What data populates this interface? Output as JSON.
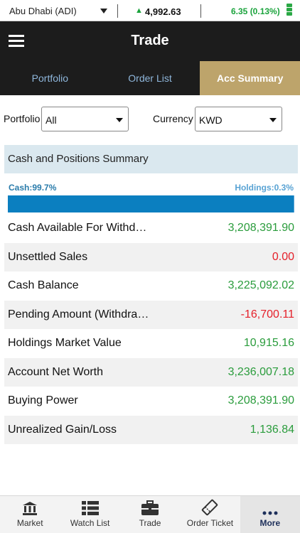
{
  "ticker": {
    "market": "Abu Dhabi (ADI)",
    "index_value": "4,992.63",
    "change": "6.35 (0.13%)"
  },
  "header": {
    "title": "Trade"
  },
  "tabs": [
    {
      "label": "Portfolio"
    },
    {
      "label": "Order List"
    },
    {
      "label": "Acc Summary"
    }
  ],
  "filters": {
    "portfolio_label": "Portfolio",
    "portfolio_value": "All",
    "currency_label": "Currency",
    "currency_value": "KWD"
  },
  "summary": {
    "title": "Cash and Positions Summary",
    "cash_ratio": "Cash:99.7%",
    "holdings_ratio": "Holdings:0.3%",
    "cash_fraction": 0.997,
    "rows": [
      {
        "label": "Cash Available For Withd…",
        "value": "3,208,391.90",
        "tone": "green"
      },
      {
        "label": "Unsettled Sales",
        "value": "0.00",
        "tone": "red"
      },
      {
        "label": "Cash Balance",
        "value": "3,225,092.02",
        "tone": "green"
      },
      {
        "label": "Pending Amount (Withdra…",
        "value": "-16,700.11",
        "tone": "red"
      },
      {
        "label": "Holdings Market Value",
        "value": "10,915.16",
        "tone": "green"
      },
      {
        "label": "Account Net Worth",
        "value": "3,236,007.18",
        "tone": "green"
      },
      {
        "label": "Buying Power",
        "value": "3,208,391.90",
        "tone": "green"
      },
      {
        "label": "Unrealized Gain/Loss",
        "value": "1,136.84",
        "tone": "green"
      }
    ]
  },
  "bottom_nav": [
    {
      "label": "Market",
      "icon": "bank-icon"
    },
    {
      "label": "Watch List",
      "icon": "list-icon"
    },
    {
      "label": "Trade",
      "icon": "briefcase-icon"
    },
    {
      "label": "Order Ticket",
      "icon": "ticket-icon"
    },
    {
      "label": "More",
      "icon": "more-dots-icon"
    }
  ],
  "colors": {
    "accent_gold": "#bda46b",
    "header_dark": "#1c1c1c",
    "positive": "#2a9c3c",
    "negative": "#e5202a",
    "bar_cash": "#0b7fc0",
    "bar_holdings": "#59a3d4"
  }
}
